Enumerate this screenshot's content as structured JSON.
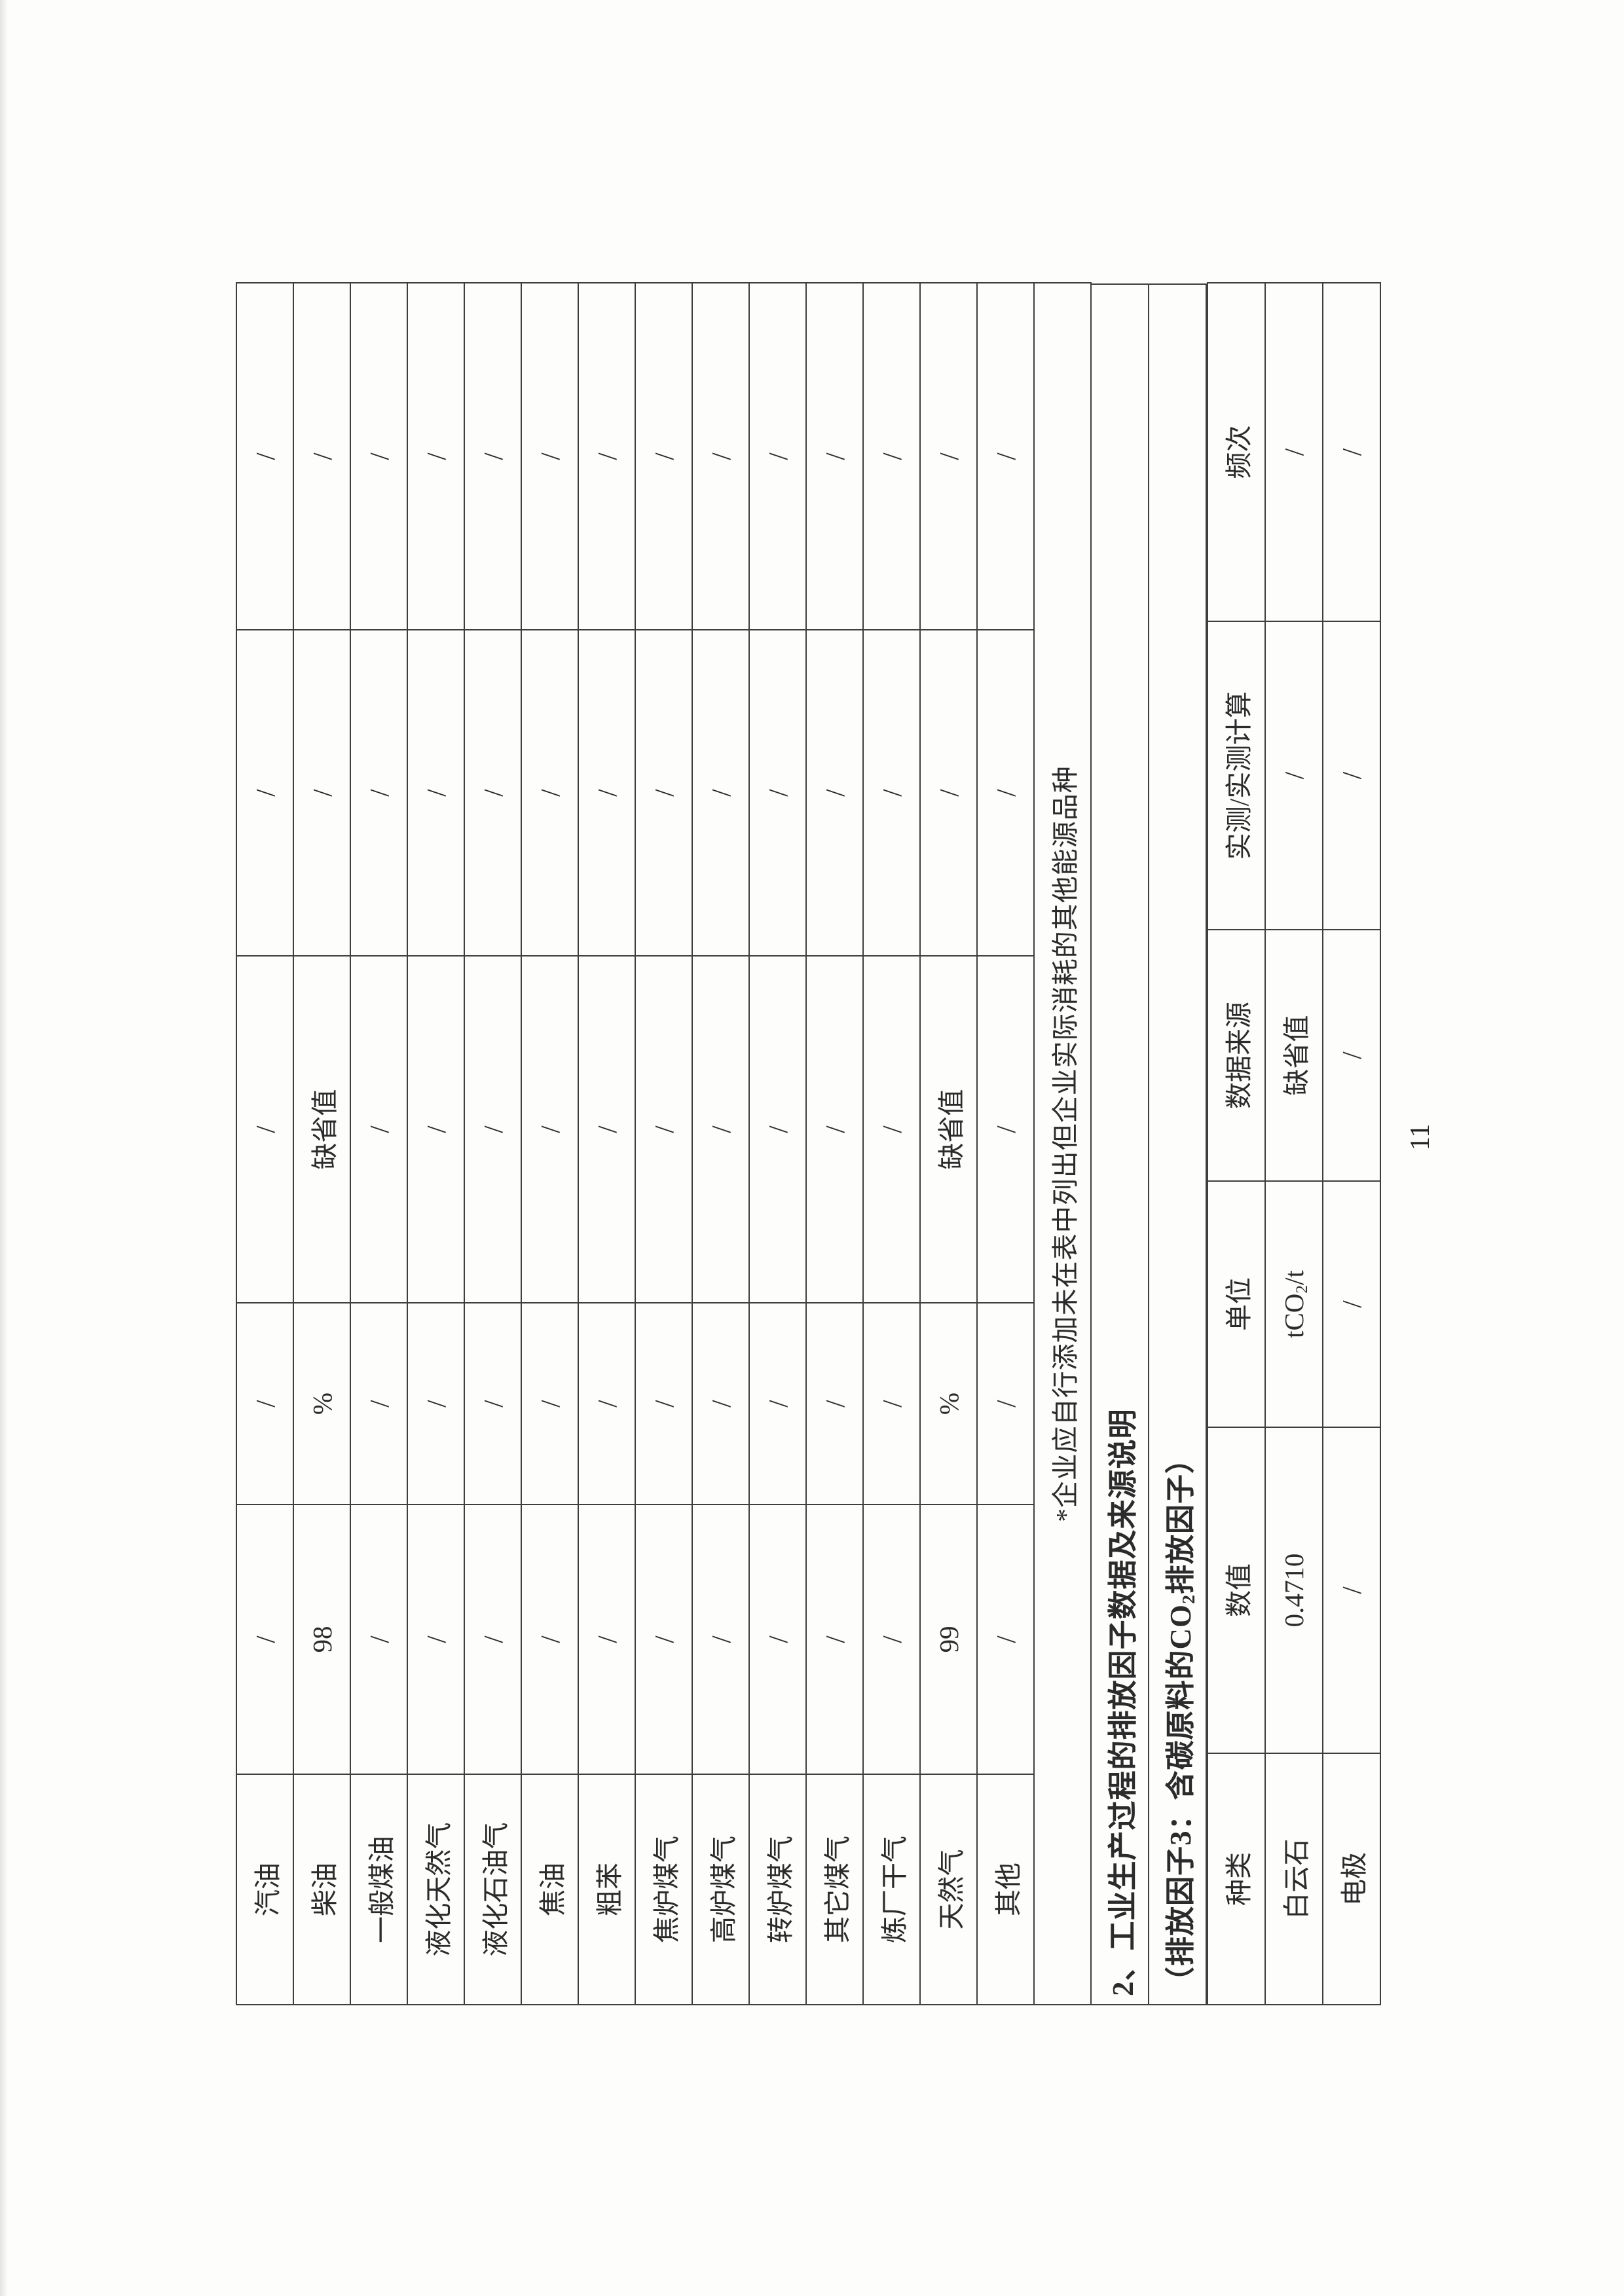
{
  "page": {
    "number": "11"
  },
  "colors": {
    "ink": "#2b2b2b",
    "grid_line": "#3e3e3e",
    "paper": "#fdfdfc"
  },
  "table1": {
    "description": "fuel carbon oxidation rate table continuation (no header row on this page)",
    "rows": [
      [
        "汽油",
        "/",
        "/",
        "/",
        "/",
        "/"
      ],
      [
        "柴油",
        "98",
        "%",
        "缺省值",
        "/",
        "/"
      ],
      [
        "一般煤油",
        "/",
        "/",
        "/",
        "/",
        "/"
      ],
      [
        "液化天然气",
        "/",
        "/",
        "/",
        "/",
        "/"
      ],
      [
        "液化石油气",
        "/",
        "/",
        "/",
        "/",
        "/"
      ],
      [
        "焦油",
        "/",
        "/",
        "/",
        "/",
        "/"
      ],
      [
        "粗苯",
        "/",
        "/",
        "/",
        "/",
        "/"
      ],
      [
        "焦炉煤气",
        "/",
        "/",
        "/",
        "/",
        "/"
      ],
      [
        "高炉煤气",
        "/",
        "/",
        "/",
        "/",
        "/"
      ],
      [
        "转炉煤气",
        "/",
        "/",
        "/",
        "/",
        "/"
      ],
      [
        "其它煤气",
        "/",
        "/",
        "/",
        "/",
        "/"
      ],
      [
        "炼厂干气",
        "/",
        "/",
        "/",
        "/",
        "/"
      ],
      [
        "天然气",
        "99",
        "%",
        "缺省值",
        "/",
        "/"
      ],
      [
        "其他",
        "/",
        "/",
        "/",
        "/",
        "/"
      ]
    ],
    "note": "*企业应自行添加未在表中列出但企业实际消耗的其他能源品种"
  },
  "section": {
    "heading": "2、工业生产过程的排放因子数据及来源说明",
    "subheading": {
      "parts": [
        {
          "t": "（排放因子3：含碳原料的CO"
        },
        {
          "t": "2",
          "sub": true
        },
        {
          "t": "排放因子）"
        }
      ]
    }
  },
  "table2": {
    "headers": [
      "种类",
      "数值",
      "单位",
      "数据来源",
      "实测/实测计算",
      "频次"
    ],
    "rows": [
      [
        "白云石",
        "0.4710",
        {
          "parts": [
            {
              "t": "tCO"
            },
            {
              "t": "2",
              "sub": true
            },
            {
              "t": "/t"
            }
          ]
        },
        "缺省值",
        "/",
        "/"
      ],
      [
        "电极",
        "/",
        "/",
        "/",
        "/",
        "/"
      ]
    ]
  }
}
